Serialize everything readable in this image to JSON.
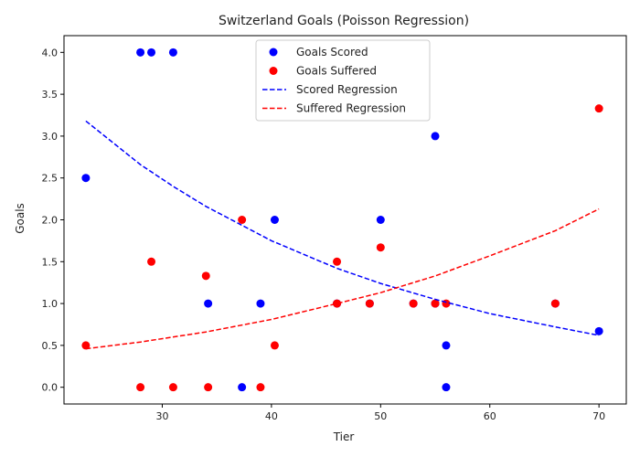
{
  "chart_data": {
    "type": "scatter",
    "title": "Switzerland Goals (Poisson Regression)",
    "xlabel": "Tier",
    "ylabel": "Goals",
    "xlim": [
      21,
      72.5
    ],
    "ylim": [
      -0.2,
      4.2
    ],
    "xticks": [
      30,
      40,
      50,
      60,
      70
    ],
    "yticks": [
      0.0,
      0.5,
      1.0,
      1.5,
      2.0,
      2.5,
      3.0,
      3.5,
      4.0
    ],
    "ytick_labels": [
      "0.0",
      "0.5",
      "1.0",
      "1.5",
      "2.0",
      "2.5",
      "3.0",
      "3.5",
      "4.0"
    ],
    "xtick_labels": [
      "30",
      "40",
      "50",
      "60",
      "70"
    ],
    "grid": false,
    "legend_position": "top-center",
    "series": [
      {
        "name": "Goals Scored",
        "kind": "scatter",
        "color": "#0000ff",
        "points": [
          [
            23,
            2.5
          ],
          [
            28,
            4.0
          ],
          [
            29,
            4.0
          ],
          [
            31,
            4.0
          ],
          [
            34.2,
            1.0
          ],
          [
            37.3,
            0.0
          ],
          [
            39,
            1.0
          ],
          [
            40.3,
            2.0
          ],
          [
            46,
            1.0
          ],
          [
            49,
            1.0
          ],
          [
            50,
            2.0
          ],
          [
            53,
            1.0
          ],
          [
            55,
            3.0
          ],
          [
            55,
            1.0
          ],
          [
            56,
            0.5
          ],
          [
            56,
            0.0
          ],
          [
            66,
            1.0
          ],
          [
            70,
            0.67
          ]
        ]
      },
      {
        "name": "Goals Suffered",
        "kind": "scatter",
        "color": "#ff0000",
        "points": [
          [
            23,
            0.5
          ],
          [
            28,
            0.0
          ],
          [
            29,
            1.5
          ],
          [
            31,
            0.0
          ],
          [
            34,
            1.33
          ],
          [
            34.2,
            0.0
          ],
          [
            37.3,
            2.0
          ],
          [
            39,
            0.0
          ],
          [
            40.3,
            0.5
          ],
          [
            46,
            1.5
          ],
          [
            46,
            1.0
          ],
          [
            49,
            1.0
          ],
          [
            50,
            1.67
          ],
          [
            53,
            1.0
          ],
          [
            55,
            1.0
          ],
          [
            56,
            1.0
          ],
          [
            66,
            1.0
          ],
          [
            70,
            3.33
          ]
        ]
      },
      {
        "name": "Scored Regression",
        "kind": "line",
        "dash": true,
        "color": "#0000ff",
        "points": [
          [
            23,
            3.18
          ],
          [
            28,
            2.66
          ],
          [
            31,
            2.4
          ],
          [
            34,
            2.16
          ],
          [
            40,
            1.75
          ],
          [
            46,
            1.42
          ],
          [
            50,
            1.24
          ],
          [
            55,
            1.05
          ],
          [
            60,
            0.88
          ],
          [
            66,
            0.72
          ],
          [
            70,
            0.62
          ]
        ]
      },
      {
        "name": "Suffered Regression",
        "kind": "line",
        "dash": true,
        "color": "#ff0000",
        "points": [
          [
            23,
            0.46
          ],
          [
            28,
            0.54
          ],
          [
            34,
            0.66
          ],
          [
            40,
            0.81
          ],
          [
            46,
            1.0
          ],
          [
            50,
            1.13
          ],
          [
            55,
            1.33
          ],
          [
            60,
            1.57
          ],
          [
            66,
            1.87
          ],
          [
            70,
            2.13
          ]
        ]
      }
    ]
  }
}
